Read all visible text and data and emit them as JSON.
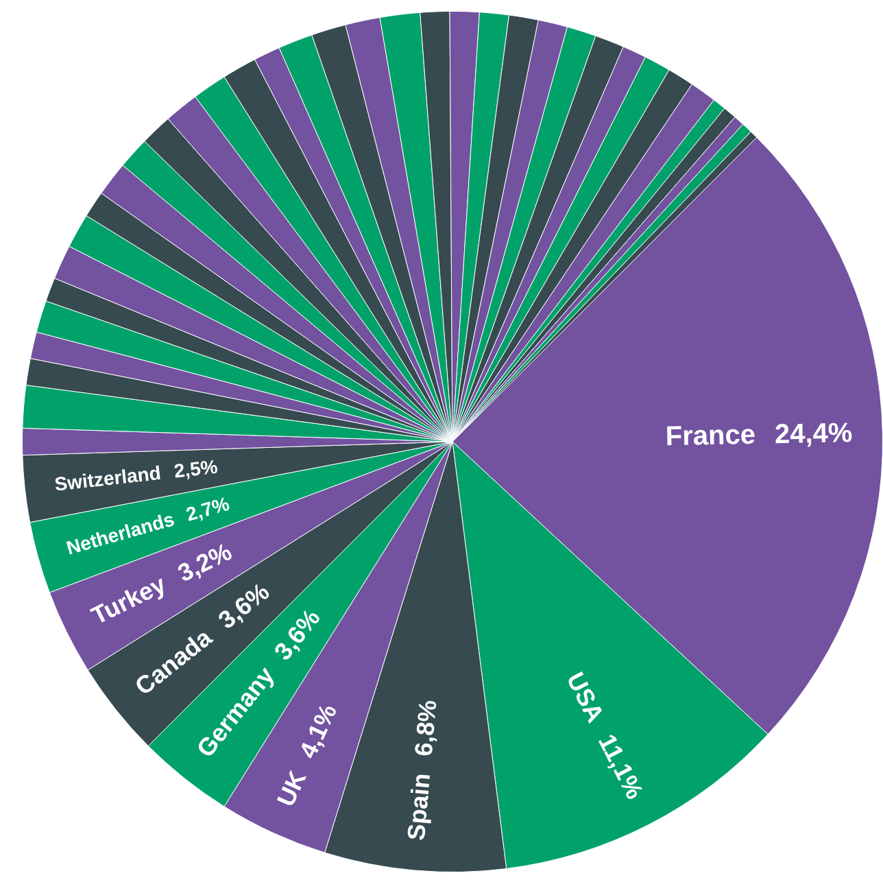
{
  "chart_data": {
    "type": "pie",
    "categories": [
      "France",
      "USA",
      "Spain",
      "UK",
      "Germany",
      "Canada",
      "Turkey",
      "Netherlands",
      "Switzerland",
      null,
      null,
      null,
      null,
      null,
      null,
      null,
      null,
      null,
      null,
      null,
      null,
      null,
      null,
      null,
      null,
      null,
      null,
      null,
      null,
      null,
      null,
      null,
      null,
      null,
      null,
      null,
      null,
      null,
      null,
      null,
      null,
      null,
      null,
      null,
      null
    ],
    "values": [
      24.4,
      11.1,
      6.8,
      4.1,
      3.6,
      3.6,
      3.2,
      2.7,
      2.5,
      1.0,
      1.6,
      1.0,
      1.0,
      1.2,
      0.9,
      1.3,
      1.3,
      1.0,
      1.3,
      1.2,
      1.2,
      1.3,
      1.3,
      1.3,
      1.0,
      1.3,
      1.3,
      1.3,
      1.5,
      1.1,
      1.1,
      1.1,
      1.1,
      1.1,
      1.1,
      1.1,
      0.9,
      1.0,
      1.0,
      1.0,
      0.5,
      0.5,
      0.4,
      0.4,
      0.3
    ],
    "value_labels": [
      "24,4%",
      "11,1%",
      "6,8%",
      "4,1%",
      "3,6%",
      "3,6%",
      "3,2%",
      "2,7%",
      "2,5%",
      null,
      null,
      null,
      null,
      null,
      null,
      null,
      null,
      null,
      null,
      null,
      null,
      null,
      null,
      null,
      null,
      null,
      null,
      null,
      null,
      null,
      null,
      null,
      null,
      null,
      null,
      null,
      null,
      null,
      null,
      null,
      null,
      null,
      null,
      null,
      null
    ],
    "colors": [
      "#7352a0",
      "#00a26a",
      "#364a4f",
      "#7352a0",
      "#00a26a",
      "#364a4f",
      "#7352a0",
      "#00a26a",
      "#364a4f",
      "#7352a0",
      "#00a26a",
      "#364a4f",
      "#7352a0",
      "#00a26a",
      "#364a4f",
      "#7352a0",
      "#00a26a",
      "#364a4f",
      "#7352a0",
      "#00a26a",
      "#364a4f",
      "#7352a0",
      "#00a26a",
      "#364a4f",
      "#7352a0",
      "#00a26a",
      "#364a4f",
      "#7352a0",
      "#00a26a",
      "#364a4f",
      "#7352a0",
      "#00a26a",
      "#364a4f",
      "#7352a0",
      "#00a26a",
      "#364a4f",
      "#7352a0",
      "#00a26a",
      "#364a4f",
      "#7352a0",
      "#00a26a",
      "#364a4f",
      "#7352a0",
      "#00a26a",
      "#364a4f"
    ]
  }
}
